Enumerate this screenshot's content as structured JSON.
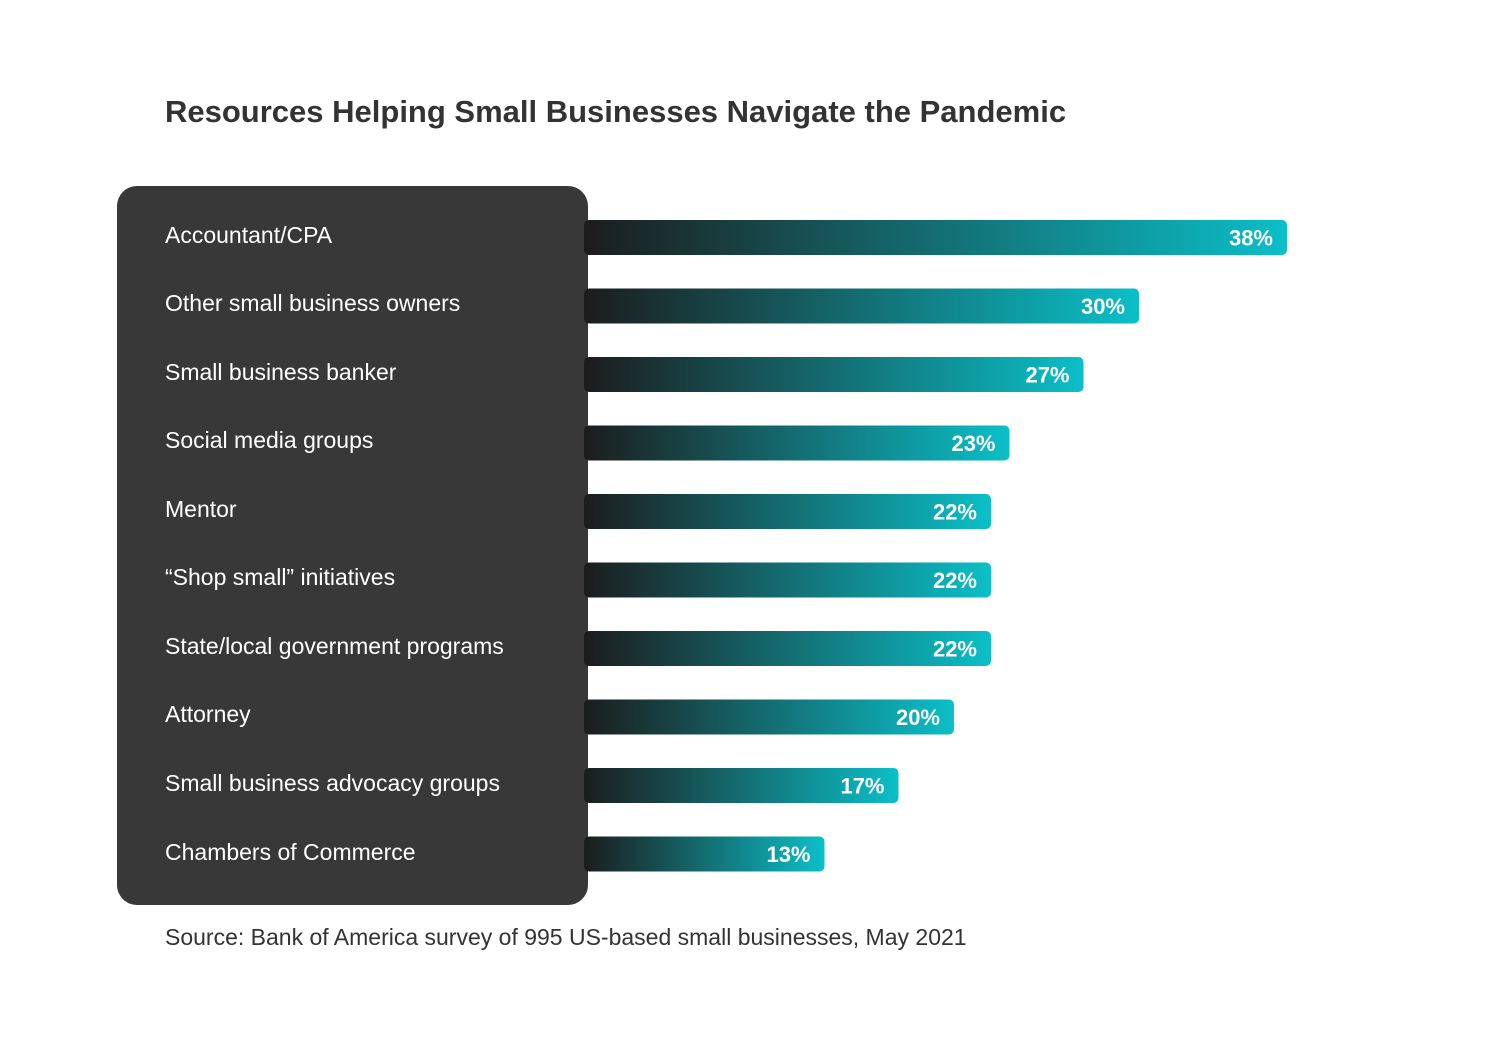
{
  "chart_data": {
    "type": "bar",
    "orientation": "horizontal",
    "title": "Resources Helping Small Businesses Navigate the Pandemic",
    "categories": [
      "Accountant/CPA",
      "Other small business owners",
      "Small business banker",
      "Social media groups",
      "Mentor",
      "“Shop small” initiatives",
      "State/local government programs",
      "Attorney",
      "Small business advocacy groups",
      "Chambers of Commerce"
    ],
    "values": [
      38,
      30,
      27,
      23,
      22,
      22,
      22,
      20,
      17,
      13
    ],
    "value_labels": [
      "38%",
      "30%",
      "27%",
      "23%",
      "22%",
      "22%",
      "22%",
      "20%",
      "17%",
      "13%"
    ],
    "unit": "%",
    "xlim": [
      0,
      38
    ],
    "grid": false,
    "source": "Source: Bank of America survey of 995 US-based small businesses, May 2021"
  },
  "colors": {
    "label_panel": "#383838",
    "bar_gradient_start": "#1c1c1c",
    "bar_gradient_end": "#0bbfc8",
    "title_text": "#333333",
    "label_text": "#ffffff",
    "value_text": "#ffffff"
  }
}
